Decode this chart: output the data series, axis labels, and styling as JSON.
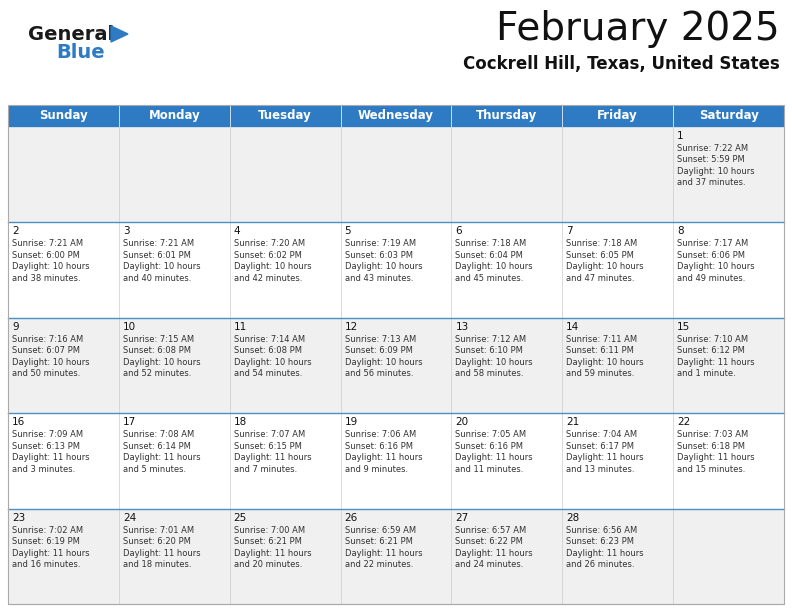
{
  "title": "February 2025",
  "subtitle": "Cockrell Hill, Texas, United States",
  "header_color": "#2E7BC4",
  "header_text_color": "#FFFFFF",
  "background_color": "#FFFFFF",
  "row_colors": [
    "#F0F0F0",
    "#FFFFFF",
    "#F0F0F0",
    "#FFFFFF",
    "#F0F0F0"
  ],
  "border_color": "#AAAAAA",
  "row_sep_color": "#4A90C4",
  "day_headers": [
    "Sunday",
    "Monday",
    "Tuesday",
    "Wednesday",
    "Thursday",
    "Friday",
    "Saturday"
  ],
  "weeks": [
    [
      {
        "day": "",
        "info": ""
      },
      {
        "day": "",
        "info": ""
      },
      {
        "day": "",
        "info": ""
      },
      {
        "day": "",
        "info": ""
      },
      {
        "day": "",
        "info": ""
      },
      {
        "day": "",
        "info": ""
      },
      {
        "day": "1",
        "info": "Sunrise: 7:22 AM\nSunset: 5:59 PM\nDaylight: 10 hours\nand 37 minutes."
      }
    ],
    [
      {
        "day": "2",
        "info": "Sunrise: 7:21 AM\nSunset: 6:00 PM\nDaylight: 10 hours\nand 38 minutes."
      },
      {
        "day": "3",
        "info": "Sunrise: 7:21 AM\nSunset: 6:01 PM\nDaylight: 10 hours\nand 40 minutes."
      },
      {
        "day": "4",
        "info": "Sunrise: 7:20 AM\nSunset: 6:02 PM\nDaylight: 10 hours\nand 42 minutes."
      },
      {
        "day": "5",
        "info": "Sunrise: 7:19 AM\nSunset: 6:03 PM\nDaylight: 10 hours\nand 43 minutes."
      },
      {
        "day": "6",
        "info": "Sunrise: 7:18 AM\nSunset: 6:04 PM\nDaylight: 10 hours\nand 45 minutes."
      },
      {
        "day": "7",
        "info": "Sunrise: 7:18 AM\nSunset: 6:05 PM\nDaylight: 10 hours\nand 47 minutes."
      },
      {
        "day": "8",
        "info": "Sunrise: 7:17 AM\nSunset: 6:06 PM\nDaylight: 10 hours\nand 49 minutes."
      }
    ],
    [
      {
        "day": "9",
        "info": "Sunrise: 7:16 AM\nSunset: 6:07 PM\nDaylight: 10 hours\nand 50 minutes."
      },
      {
        "day": "10",
        "info": "Sunrise: 7:15 AM\nSunset: 6:08 PM\nDaylight: 10 hours\nand 52 minutes."
      },
      {
        "day": "11",
        "info": "Sunrise: 7:14 AM\nSunset: 6:08 PM\nDaylight: 10 hours\nand 54 minutes."
      },
      {
        "day": "12",
        "info": "Sunrise: 7:13 AM\nSunset: 6:09 PM\nDaylight: 10 hours\nand 56 minutes."
      },
      {
        "day": "13",
        "info": "Sunrise: 7:12 AM\nSunset: 6:10 PM\nDaylight: 10 hours\nand 58 minutes."
      },
      {
        "day": "14",
        "info": "Sunrise: 7:11 AM\nSunset: 6:11 PM\nDaylight: 10 hours\nand 59 minutes."
      },
      {
        "day": "15",
        "info": "Sunrise: 7:10 AM\nSunset: 6:12 PM\nDaylight: 11 hours\nand 1 minute."
      }
    ],
    [
      {
        "day": "16",
        "info": "Sunrise: 7:09 AM\nSunset: 6:13 PM\nDaylight: 11 hours\nand 3 minutes."
      },
      {
        "day": "17",
        "info": "Sunrise: 7:08 AM\nSunset: 6:14 PM\nDaylight: 11 hours\nand 5 minutes."
      },
      {
        "day": "18",
        "info": "Sunrise: 7:07 AM\nSunset: 6:15 PM\nDaylight: 11 hours\nand 7 minutes."
      },
      {
        "day": "19",
        "info": "Sunrise: 7:06 AM\nSunset: 6:16 PM\nDaylight: 11 hours\nand 9 minutes."
      },
      {
        "day": "20",
        "info": "Sunrise: 7:05 AM\nSunset: 6:16 PM\nDaylight: 11 hours\nand 11 minutes."
      },
      {
        "day": "21",
        "info": "Sunrise: 7:04 AM\nSunset: 6:17 PM\nDaylight: 11 hours\nand 13 minutes."
      },
      {
        "day": "22",
        "info": "Sunrise: 7:03 AM\nSunset: 6:18 PM\nDaylight: 11 hours\nand 15 minutes."
      }
    ],
    [
      {
        "day": "23",
        "info": "Sunrise: 7:02 AM\nSunset: 6:19 PM\nDaylight: 11 hours\nand 16 minutes."
      },
      {
        "day": "24",
        "info": "Sunrise: 7:01 AM\nSunset: 6:20 PM\nDaylight: 11 hours\nand 18 minutes."
      },
      {
        "day": "25",
        "info": "Sunrise: 7:00 AM\nSunset: 6:21 PM\nDaylight: 11 hours\nand 20 minutes."
      },
      {
        "day": "26",
        "info": "Sunrise: 6:59 AM\nSunset: 6:21 PM\nDaylight: 11 hours\nand 22 minutes."
      },
      {
        "day": "27",
        "info": "Sunrise: 6:57 AM\nSunset: 6:22 PM\nDaylight: 11 hours\nand 24 minutes."
      },
      {
        "day": "28",
        "info": "Sunrise: 6:56 AM\nSunset: 6:23 PM\nDaylight: 11 hours\nand 26 minutes."
      },
      {
        "day": "",
        "info": ""
      }
    ]
  ],
  "logo_text_general": "General",
  "logo_text_blue": "Blue",
  "logo_triangle_color": "#2E7BC4",
  "fig_width": 7.92,
  "fig_height": 6.12,
  "dpi": 100
}
